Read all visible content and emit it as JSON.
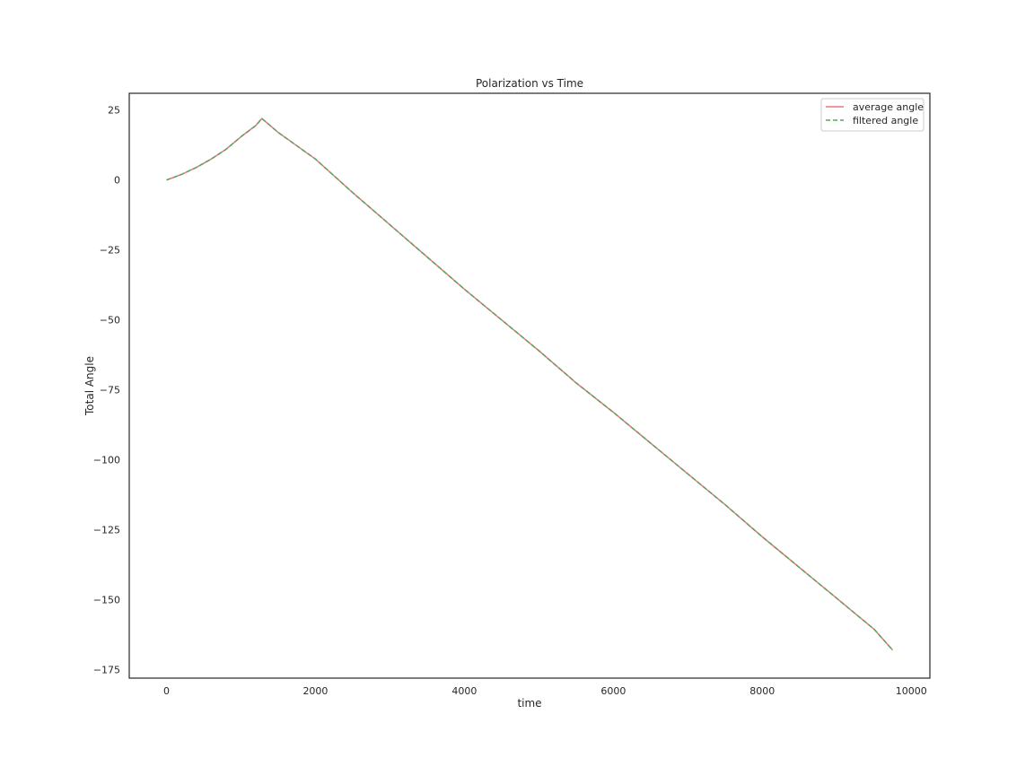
{
  "chart_data": {
    "type": "line",
    "title": "Polarization vs Time",
    "xlabel": "time",
    "ylabel": "Total Angle",
    "xlim": [
      -500,
      10250
    ],
    "ylim": [
      -178,
      31
    ],
    "xticks": [
      0,
      2000,
      4000,
      6000,
      8000,
      10000
    ],
    "yticks": [
      25,
      0,
      -25,
      -50,
      -75,
      -100,
      -125,
      -150,
      -175
    ],
    "xtick_labels": [
      "0",
      "2000",
      "4000",
      "6000",
      "8000",
      "10000"
    ],
    "ytick_labels": [
      "25",
      "0",
      "−25",
      "−50",
      "−75",
      "−100",
      "−125",
      "−150",
      "−175"
    ],
    "grid": false,
    "legend_position": "upper right",
    "series": [
      {
        "name": "average angle",
        "color": "#e8767c",
        "style": "solid",
        "x": [
          0,
          200,
          400,
          600,
          800,
          1000,
          1200,
          1280,
          1500,
          2000,
          2500,
          3000,
          3500,
          4000,
          4500,
          5000,
          5500,
          6000,
          6500,
          7000,
          7500,
          8000,
          8500,
          9000,
          9500,
          9750
        ],
        "y": [
          0,
          2,
          4.5,
          7.5,
          11,
          15.5,
          19.5,
          22,
          17,
          7.5,
          -4.5,
          -16,
          -27.5,
          -39,
          -50,
          -61,
          -72.5,
          -83,
          -94,
          -105,
          -116,
          -127.5,
          -138.5,
          -149.5,
          -160.5,
          -168
        ]
      },
      {
        "name": "filtered angle",
        "color": "#5aa35f",
        "style": "dashed",
        "x": [
          0,
          200,
          400,
          600,
          800,
          1000,
          1200,
          1280,
          1500,
          2000,
          2500,
          3000,
          3500,
          4000,
          4500,
          5000,
          5500,
          6000,
          6500,
          7000,
          7500,
          8000,
          8500,
          9000,
          9500,
          9750
        ],
        "y": [
          0,
          2,
          4.5,
          7.5,
          11,
          15.5,
          19.5,
          22,
          17,
          7.5,
          -4.5,
          -16,
          -27.5,
          -39,
          -50,
          -61,
          -72.5,
          -83,
          -94,
          -105,
          -116,
          -127.5,
          -138.5,
          -149.5,
          -160.5,
          -168
        ]
      }
    ]
  }
}
